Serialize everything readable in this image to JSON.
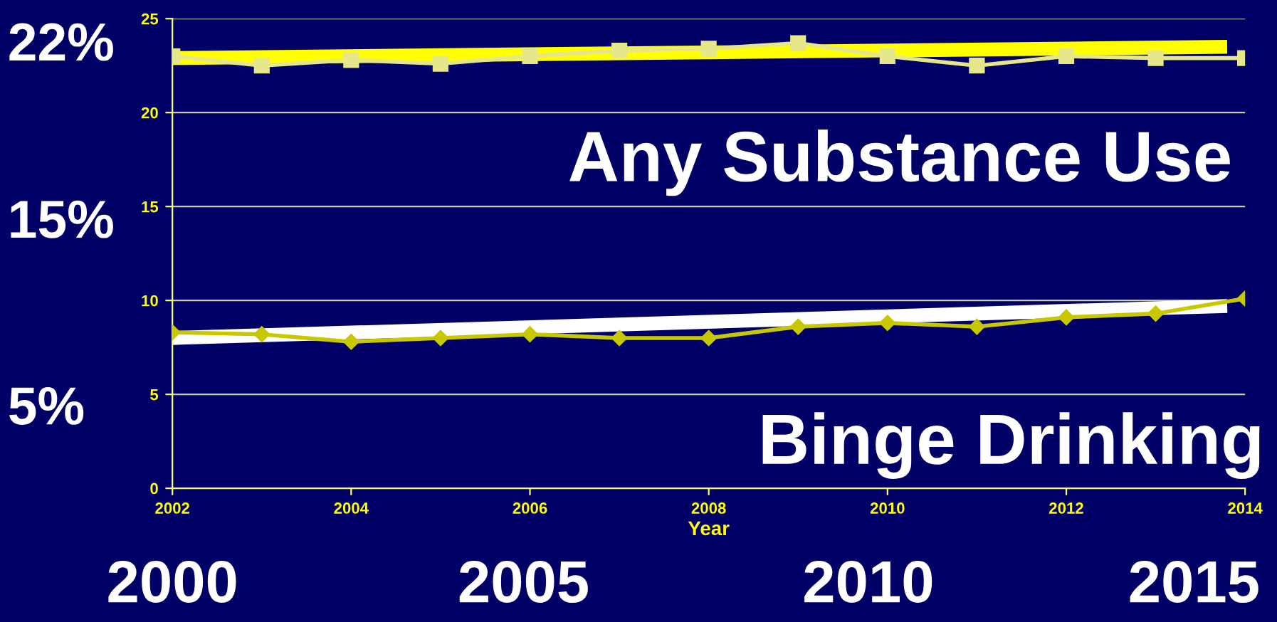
{
  "chart_data": {
    "type": "line",
    "xlabel": "Year",
    "xlim": [
      2002,
      2014
    ],
    "xticks": [
      2002,
      2004,
      2006,
      2008,
      2010,
      2012,
      2014
    ],
    "ylim": [
      0,
      25
    ],
    "yticks": [
      0,
      5,
      10,
      15,
      20,
      25
    ],
    "grid": "y",
    "series": [
      {
        "color": "#e6e68a",
        "marker": "square",
        "x": [
          2002,
          2003,
          2004,
          2005,
          2006,
          2007,
          2008,
          2009,
          2010,
          2011,
          2012,
          2013,
          2014
        ],
        "values": [
          23.0,
          22.5,
          22.8,
          22.6,
          23.0,
          23.3,
          23.4,
          23.7,
          23.0,
          22.5,
          23.0,
          22.9,
          22.9
        ]
      },
      {
        "color": "#c8c800",
        "marker": "diamond",
        "x": [
          2002,
          2003,
          2004,
          2005,
          2006,
          2007,
          2008,
          2009,
          2010,
          2011,
          2012,
          2013,
          2014
        ],
        "values": [
          8.3,
          8.2,
          7.8,
          8.0,
          8.2,
          8.0,
          8.0,
          8.6,
          8.8,
          8.6,
          9.1,
          9.3,
          10.1
        ]
      },
      {
        "color": "#ffff00",
        "marker": "none",
        "x": [
          2002,
          2013.8
        ],
        "values": [
          22.9,
          23.5
        ]
      },
      {
        "color": "#ffffff",
        "marker": "none",
        "x": [
          2002,
          2013.8
        ],
        "values": [
          8.0,
          9.7
        ]
      }
    ],
    "annotations": [
      "22%",
      "15%",
      "5%",
      "Any Substance Use",
      "Binge Drinking",
      "2000",
      "2005",
      "2010",
      "2015"
    ]
  }
}
